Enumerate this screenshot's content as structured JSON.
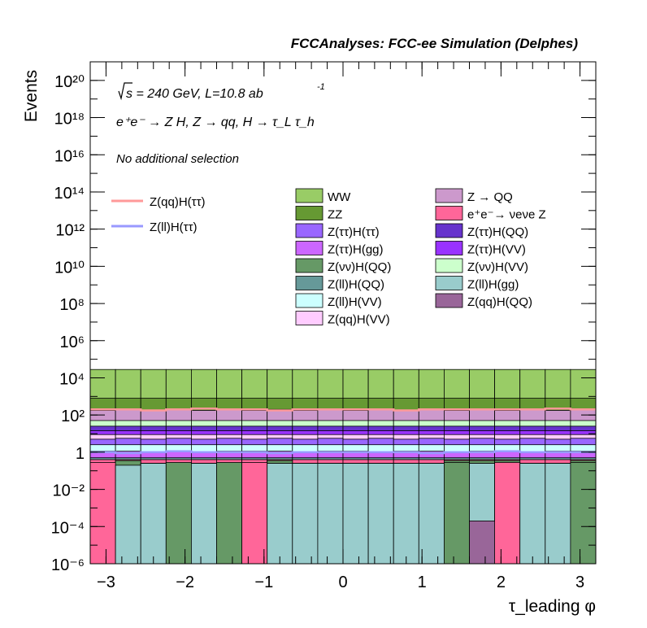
{
  "header": {
    "title": "FCCAnalyses: FCC-ee Simulation (Delphes)"
  },
  "annotations": {
    "sqrt_s": "s = 240 GeV, L=10.8 ab",
    "lumi_exp": "-1",
    "process": "e⁺e⁻ → Z H, Z → qq, H → τ_L τ_h",
    "selection": "No additional selection"
  },
  "chart_data": {
    "type": "area",
    "title": "FCCAnalyses: FCC-ee Simulation (Delphes)",
    "xlabel": "τ_leading φ",
    "ylabel": "Events",
    "xlim": [
      -3.2,
      3.2
    ],
    "ylim": [
      1e-06,
      1e+21
    ],
    "yscale": "log",
    "x_ticks": [
      "−3",
      "−2",
      "−1",
      "0",
      "1",
      "2",
      "3"
    ],
    "x_tick_values": [
      -3,
      -2,
      -1,
      0,
      1,
      2,
      3
    ],
    "y_ticks": [
      "10⁻⁶",
      "10⁻⁴",
      "10⁻²",
      "1",
      "10²",
      "10⁴",
      "10⁶",
      "10⁸",
      "10¹⁰",
      "10¹²",
      "10¹⁴",
      "10¹⁶",
      "10¹⁸",
      "10²⁰"
    ],
    "y_tick_exponents": [
      -6,
      -4,
      -2,
      0,
      2,
      4,
      6,
      8,
      10,
      12,
      14,
      16,
      18,
      20
    ],
    "bins": 20,
    "stack_log_tops": [
      {
        "name": "Z(ll)H(gg)",
        "color": "#99CCCC",
        "tops": [
          -0.7,
          -0.7,
          -0.6,
          -0.6,
          -0.6,
          -0.6,
          -0.6,
          -0.6,
          -0.6,
          -0.6,
          -0.6,
          -0.6,
          -0.6,
          -0.6,
          -0.6,
          -0.6,
          -0.6,
          -0.6,
          -0.6,
          -0.6
        ]
      },
      {
        "name": "Z(qq)H(QQ)",
        "color": "#996699",
        "tops": [
          null,
          null,
          null,
          null,
          null,
          null,
          null,
          null,
          null,
          null,
          null,
          null,
          null,
          null,
          null,
          null,
          null,
          null,
          null,
          null
        ]
      },
      {
        "name": "Z(νν)H(QQ)",
        "color": "#669966",
        "tops": [
          -0.6,
          -0.45,
          -0.6,
          -0.6,
          -0.6,
          -0.6,
          -0.6,
          -0.45,
          -0.6,
          -0.6,
          -0.6,
          -0.6,
          -0.6,
          -0.6,
          -0.45,
          -0.45,
          -0.45,
          -0.6,
          -0.6,
          -0.45
        ]
      },
      {
        "name": "e⁺e⁻→ νeνe Z",
        "color": "#FF6699",
        "tops": [
          -0.4,
          -0.4,
          -0.4,
          -0.4,
          -0.4,
          -0.4,
          -0.4,
          -0.4,
          -0.4,
          -0.4,
          -0.4,
          -0.4,
          -0.4,
          -0.4,
          -0.4,
          -0.4,
          -0.4,
          -0.4,
          -0.4,
          -0.4
        ]
      },
      {
        "name": "Z(ll)H(QQ)",
        "color": "#669999",
        "tops": [
          -0.3,
          -0.3,
          -0.3,
          -0.3,
          -0.3,
          -0.3,
          -0.3,
          -0.3,
          -0.3,
          -0.3,
          -0.3,
          -0.3,
          -0.3,
          -0.3,
          -0.3,
          -0.3,
          -0.3,
          -0.3,
          -0.3,
          -0.3
        ]
      },
      {
        "name": "Z(ττ)H(gg)",
        "color": "#CC66FF",
        "tops": [
          0.05,
          0.05,
          0.0,
          0.05,
          0.0,
          0.05,
          0.05,
          0.05,
          0.0,
          0.05,
          0.05,
          0.0,
          0.05,
          0.05,
          0.0,
          0.05,
          0.05,
          0.0,
          0.05,
          0.05
        ]
      },
      {
        "name": "Z(ll)H(VV)",
        "color": "#CCFFFF",
        "tops": [
          0.4,
          0.4,
          0.4,
          0.4,
          0.4,
          0.4,
          0.4,
          0.4,
          0.4,
          0.4,
          0.4,
          0.4,
          0.4,
          0.4,
          0.4,
          0.4,
          0.4,
          0.4,
          0.4,
          0.4
        ]
      },
      {
        "name": "Z(ττ)H(ττ)",
        "color": "#9966FF",
        "tops": [
          0.7,
          0.75,
          0.7,
          0.75,
          0.7,
          0.75,
          0.7,
          0.75,
          0.7,
          0.75,
          0.7,
          0.75,
          0.7,
          0.75,
          0.7,
          0.75,
          0.7,
          0.75,
          0.7,
          0.75
        ]
      },
      {
        "name": "Z(qq)H(VV)",
        "color": "#FFCCFF",
        "tops": [
          0.95,
          0.95,
          0.95,
          0.95,
          0.95,
          0.95,
          0.95,
          0.95,
          0.95,
          0.95,
          0.95,
          0.95,
          0.95,
          0.95,
          0.95,
          0.95,
          0.95,
          0.95,
          0.95,
          0.95
        ]
      },
      {
        "name": "Z(ττ)H(VV)",
        "color": "#9933FF",
        "tops": [
          1.15,
          1.15,
          1.15,
          1.15,
          1.15,
          1.15,
          1.15,
          1.15,
          1.15,
          1.15,
          1.15,
          1.15,
          1.15,
          1.15,
          1.15,
          1.15,
          1.15,
          1.15,
          1.15,
          1.15
        ]
      },
      {
        "name": "Z(ττ)H(QQ)",
        "color": "#6633CC",
        "tops": [
          1.4,
          1.4,
          1.4,
          1.4,
          1.4,
          1.4,
          1.4,
          1.4,
          1.4,
          1.4,
          1.4,
          1.4,
          1.4,
          1.4,
          1.4,
          1.4,
          1.4,
          1.4,
          1.4,
          1.4
        ]
      },
      {
        "name": "Z(νν)H(VV)",
        "color": "#CCFFCC",
        "tops": [
          1.7,
          1.7,
          1.7,
          1.7,
          1.7,
          1.7,
          1.7,
          1.7,
          1.7,
          1.7,
          1.7,
          1.7,
          1.7,
          1.7,
          1.7,
          1.7,
          1.7,
          1.7,
          1.7,
          1.7
        ]
      },
      {
        "name": "Z → QQ",
        "color": "#CC99CC",
        "tops": [
          2.25,
          2.3,
          2.25,
          2.3,
          2.25,
          2.3,
          2.25,
          2.3,
          2.25,
          2.3,
          2.25,
          2.3,
          2.25,
          2.3,
          2.25,
          2.3,
          2.25,
          2.3,
          2.25,
          2.3
        ]
      },
      {
        "name": "ZZ",
        "color": "#669933",
        "tops": [
          2.9,
          2.9,
          2.9,
          2.9,
          2.9,
          2.9,
          2.9,
          2.9,
          2.9,
          2.9,
          2.9,
          2.9,
          2.9,
          2.9,
          2.9,
          2.9,
          2.9,
          2.9,
          2.9,
          2.9
        ]
      },
      {
        "name": "WW",
        "color": "#99CC66",
        "tops": [
          4.45,
          4.45,
          4.45,
          4.45,
          4.45,
          4.45,
          4.45,
          4.45,
          4.45,
          4.45,
          4.45,
          4.45,
          4.45,
          4.45,
          4.45,
          4.45,
          4.45,
          4.45,
          4.45,
          4.45
        ]
      }
    ],
    "low_bins": {
      "ee_nunuZ_bins": [
        0,
        6,
        16
      ],
      "zvvqq_bins": [
        3,
        5,
        14,
        16,
        19
      ],
      "zqqqq_bins": [
        15
      ],
      "zqqqq_top": -3.7
    },
    "signal_lines": [
      {
        "name": "Z(qq)H(ττ)",
        "color": "#FF9999",
        "log_values": [
          2.3,
          2.3,
          2.25,
          2.3,
          2.35,
          2.3,
          2.3,
          2.25,
          2.3,
          2.3,
          2.3,
          2.3,
          2.25,
          2.3,
          2.3,
          2.3,
          2.3,
          2.3,
          2.35,
          2.3
        ]
      },
      {
        "name": "Z(ll)H(ττ)",
        "color": "#9999FF",
        "log_values": [
          0.0,
          -0.05,
          0.0,
          0.05,
          0.0,
          0.0,
          0.0,
          -0.05,
          0.0,
          0.0,
          0.0,
          0.0,
          0.0,
          -0.05,
          0.0,
          0.0,
          0.05,
          0.0,
          0.0,
          0.0
        ]
      }
    ],
    "legend_lines": [
      "Z(qq)H(ττ)",
      "Z(ll)H(ττ)"
    ],
    "legend_left": [
      "WW",
      "ZZ",
      "Z(ττ)H(ττ)",
      "Z(ττ)H(gg)",
      "Z(νν)H(QQ)",
      "Z(ll)H(QQ)",
      "Z(ll)H(VV)",
      "Z(qq)H(VV)"
    ],
    "legend_right": [
      "Z → QQ",
      "e⁺e⁻→ νeνe Z",
      "Z(ττ)H(QQ)",
      "Z(ττ)H(VV)",
      "Z(νν)H(VV)",
      "Z(ll)H(gg)",
      "Z(qq)H(QQ)"
    ],
    "legend_colors": {
      "WW": "#99CC66",
      "ZZ": "#669933",
      "Z(ττ)H(ττ)": "#9966FF",
      "Z(ττ)H(gg)": "#CC66FF",
      "Z(νν)H(QQ)": "#669966",
      "Z(ll)H(QQ)": "#669999",
      "Z(ll)H(VV)": "#CCFFFF",
      "Z(qq)H(VV)": "#FFCCFF",
      "Z → QQ": "#CC99CC",
      "e⁺e⁻→ νeνe Z": "#FF6699",
      "Z(ττ)H(QQ)": "#6633CC",
      "Z(ττ)H(VV)": "#9933FF",
      "Z(νν)H(VV)": "#CCFFCC",
      "Z(ll)H(gg)": "#99CCCC",
      "Z(qq)H(QQ)": "#996699"
    }
  }
}
